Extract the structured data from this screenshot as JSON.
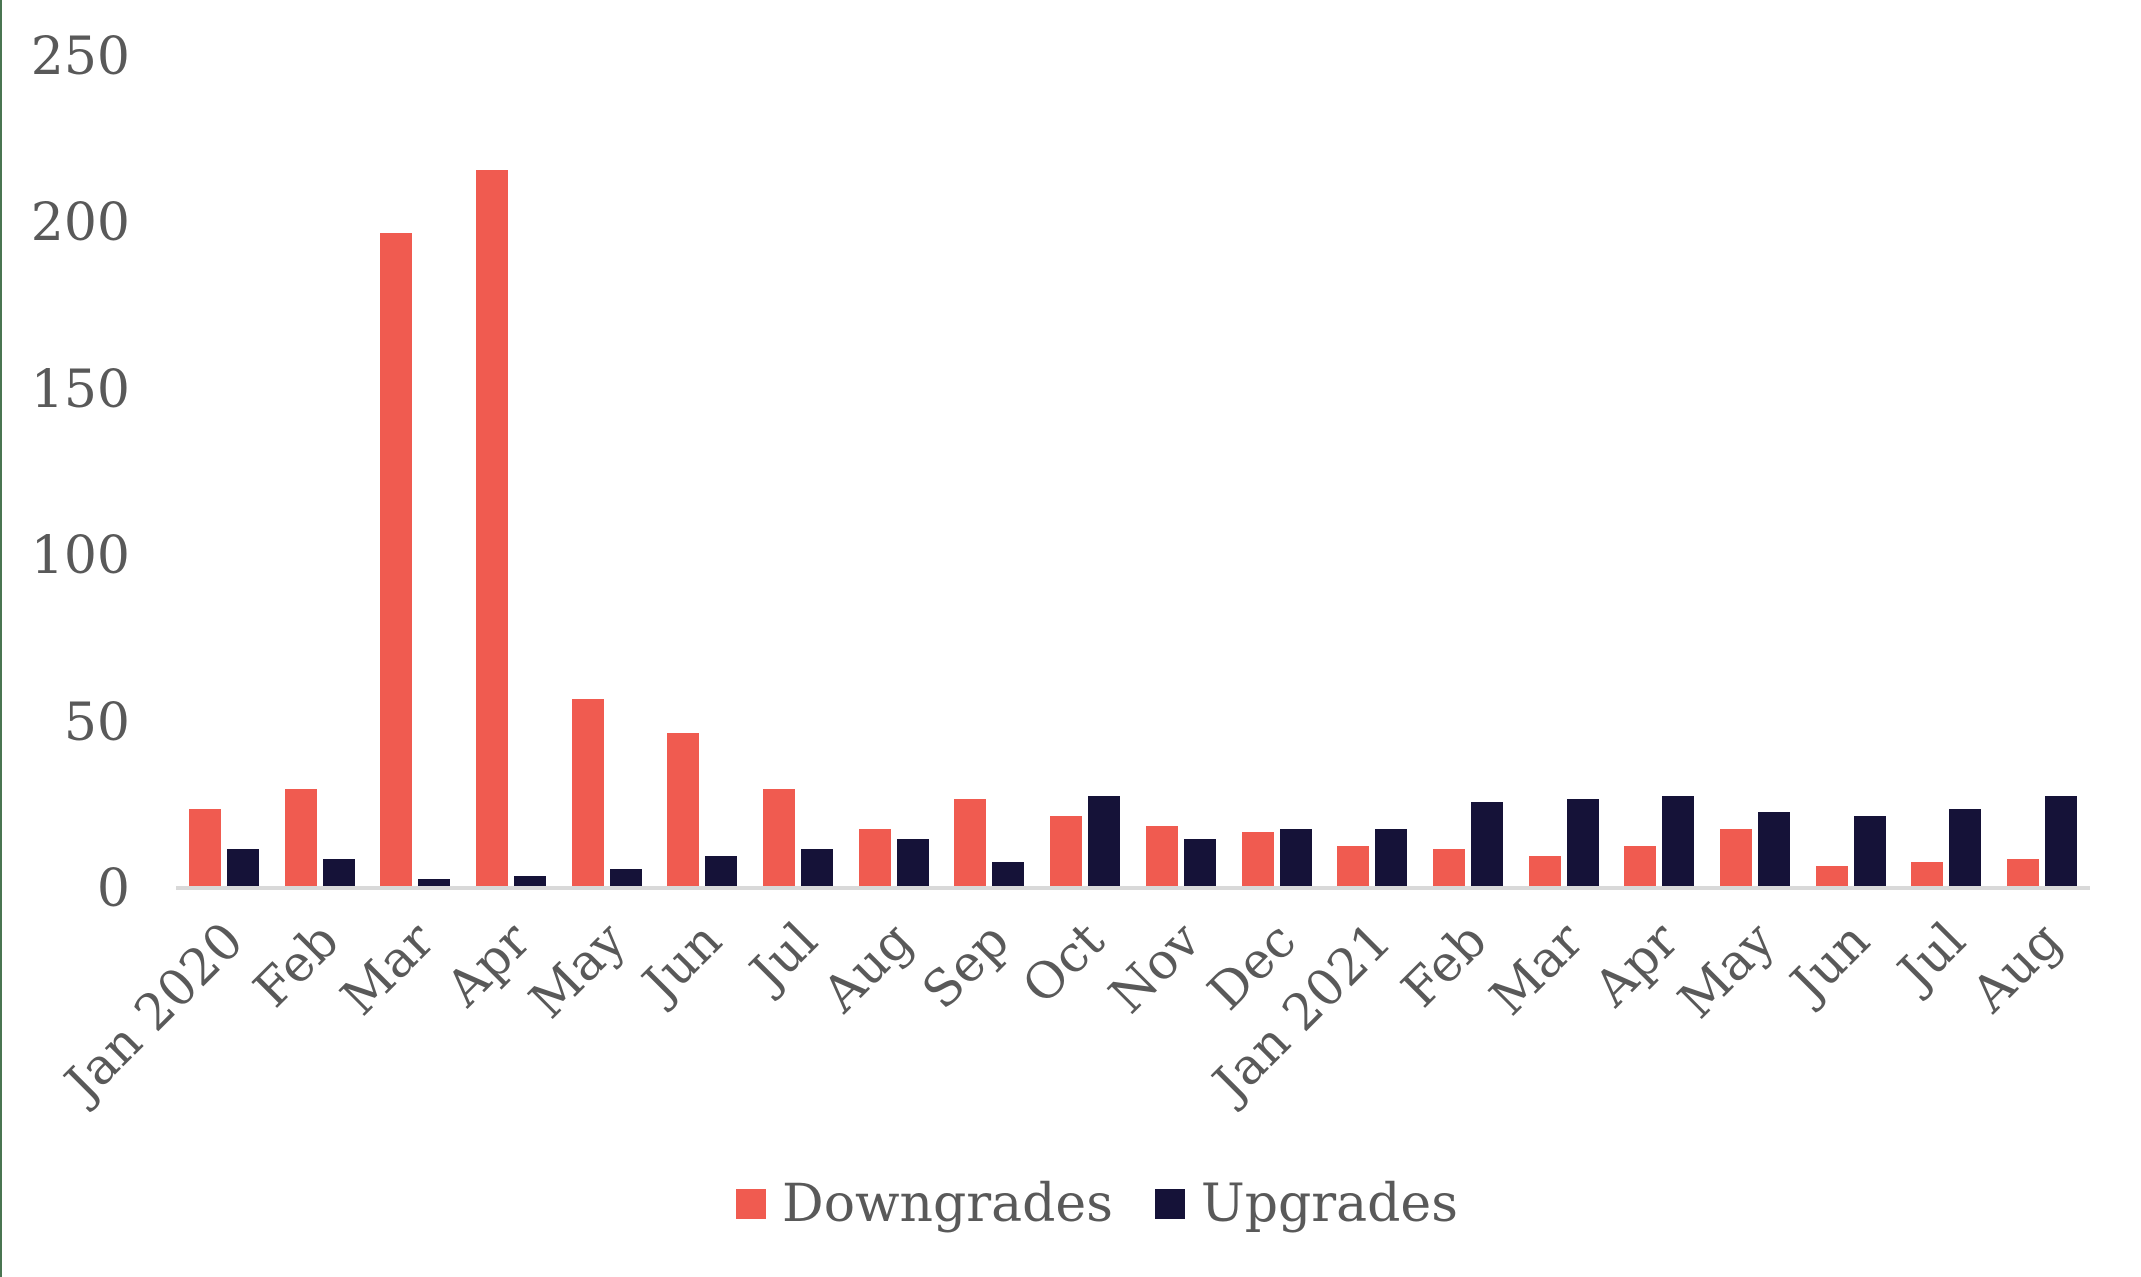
{
  "chart_data": {
    "type": "bar",
    "title": "",
    "xlabel": "",
    "ylabel": "",
    "categories": [
      "Jan 2020",
      "Feb",
      "Mar",
      "Apr",
      "May",
      "Jun",
      "Jul",
      "Aug",
      "Sep",
      "Oct",
      "Nov",
      "Dec",
      "Jan 2021",
      "Feb",
      "Mar",
      "Apr",
      "May",
      "Jun",
      "Jul",
      "Aug"
    ],
    "series": [
      {
        "name": "Downgrades",
        "color": "#F05B50",
        "values": [
          24,
          30,
          197,
          216,
          57,
          47,
          30,
          18,
          27,
          22,
          19,
          17,
          13,
          12,
          10,
          13,
          18,
          7,
          8,
          9
        ]
      },
      {
        "name": "Upgrades",
        "color": "#151238",
        "values": [
          12,
          9,
          3,
          4,
          6,
          10,
          12,
          15,
          8,
          28,
          15,
          18,
          18,
          26,
          27,
          28,
          23,
          22,
          24,
          28
        ]
      }
    ],
    "ylim": [
      0,
      250
    ],
    "yticks": [
      0,
      50,
      100,
      150,
      200,
      250
    ],
    "grid": false,
    "legend_position": "bottom",
    "colors": {
      "tick_text": "#595959",
      "axis_line": "#D9D9D9",
      "left_edge_accent": "#4A7551"
    }
  }
}
